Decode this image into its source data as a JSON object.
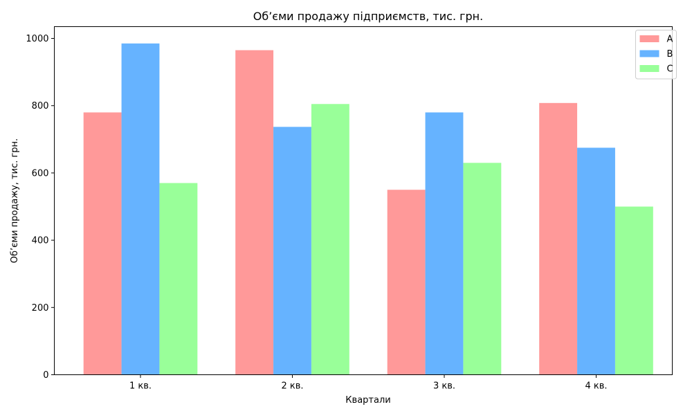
{
  "chart_data": {
    "type": "bar",
    "title": "Об’єми продажу підприємств, тис. грн.",
    "xlabel": "Квартали",
    "ylabel": "Об’єми продажу, тис. грн.",
    "categories": [
      "1 кв.",
      "2 кв.",
      "3 кв.",
      "4 кв."
    ],
    "series": [
      {
        "name": "A",
        "color": "#ff9999",
        "values": [
          780,
          965,
          550,
          808
        ]
      },
      {
        "name": "B",
        "color": "#66b3ff",
        "values": [
          985,
          737,
          780,
          675
        ]
      },
      {
        "name": "C",
        "color": "#99ff99",
        "values": [
          570,
          805,
          630,
          500
        ]
      }
    ],
    "ylim": [
      0,
      1035
    ],
    "yticks": [
      0,
      200,
      400,
      600,
      800,
      1000
    ],
    "grid": false,
    "legend_position": "top-right"
  }
}
